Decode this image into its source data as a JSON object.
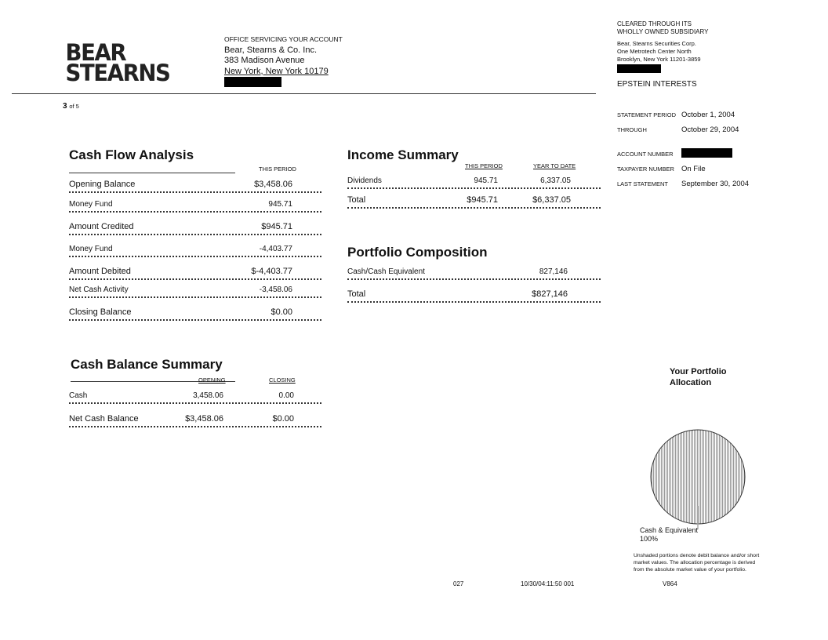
{
  "header": {
    "logo": "BEAR STEARNS",
    "office_caption": "OFFICE SERVICING YOUR ACCOUNT",
    "office_lines": [
      "Bear, Stearns & Co. Inc.",
      "383 Madison Avenue",
      "New York, New York  10179"
    ],
    "page_number": "3",
    "page_of": "of 5"
  },
  "clearing": {
    "caption_lines": [
      "CLEARED THROUGH ITS",
      "WHOLLY OWNED SUBSIDIARY"
    ],
    "address_lines": [
      "Bear, Stearns Securities Corp.",
      "One Metrotech Center North",
      "Brooklyn,  New York  11201-3859"
    ],
    "account_name": "EPSTEIN INTERESTS",
    "fields": [
      {
        "label": "STATEMENT PERIOD",
        "value": "October  1, 2004"
      },
      {
        "label": "THROUGH",
        "value": "October  29, 2004"
      },
      {
        "label": "ACCOUNT NUMBER",
        "value": ""
      },
      {
        "label": "TAXPAYER NUMBER",
        "value": "On File"
      },
      {
        "label": "LAST STATEMENT",
        "value": "September  30, 2004"
      }
    ]
  },
  "cash_flow": {
    "title": "Cash Flow Analysis",
    "column": "THIS PERIOD",
    "rows": [
      {
        "label": "Opening Balance",
        "value": "$3,458.06"
      },
      {
        "label": "Money Fund",
        "value": "945.71"
      },
      {
        "label": "Amount Credited",
        "value": "$945.71"
      },
      {
        "label": "Money Fund",
        "value": "-4,403.77"
      },
      {
        "label": "Amount Debited",
        "value": "$-4,403.77"
      },
      {
        "label": "Net Cash Activity",
        "value": "-3,458.06"
      },
      {
        "label": "Closing Balance",
        "value": "$0.00"
      }
    ]
  },
  "income": {
    "title": "Income Summary",
    "columns": [
      "THIS PERIOD",
      "YEAR TO DATE"
    ],
    "rows": [
      {
        "label": "Dividends",
        "period": "945.71",
        "ytd": "6,337.05"
      },
      {
        "label": "Total",
        "period": "$945.71",
        "ytd": "$6,337.05"
      }
    ]
  },
  "portfolio": {
    "title": "Portfolio Composition",
    "rows": [
      {
        "label": "Cash/Cash Equivalent",
        "value": "827,146"
      },
      {
        "label": "Total",
        "value": "$827,146"
      }
    ]
  },
  "cash_balance": {
    "title": "Cash Balance Summary",
    "columns": [
      "OPENING",
      "CLOSING"
    ],
    "rows": [
      {
        "label": "Cash",
        "opening": "3,458.06",
        "closing": "0.00"
      },
      {
        "label": "Net Cash Balance",
        "opening": "$3,458.06",
        "closing": "$0.00"
      }
    ]
  },
  "allocation": {
    "title_lines": [
      "Your Portfolio",
      "Allocation"
    ],
    "slice_label": "Cash & Equivalent",
    "slice_percent": "100%",
    "slice_value": 100,
    "note_lines": [
      "Unshaded portions denote debit balance and/or short",
      "market values.  The allocation percentage is derived",
      "from the absolute market value of your portfolio."
    ]
  },
  "footer": {
    "code1": "027",
    "timestamp": "10/30/04:11:50  001",
    "code2": "V864"
  }
}
